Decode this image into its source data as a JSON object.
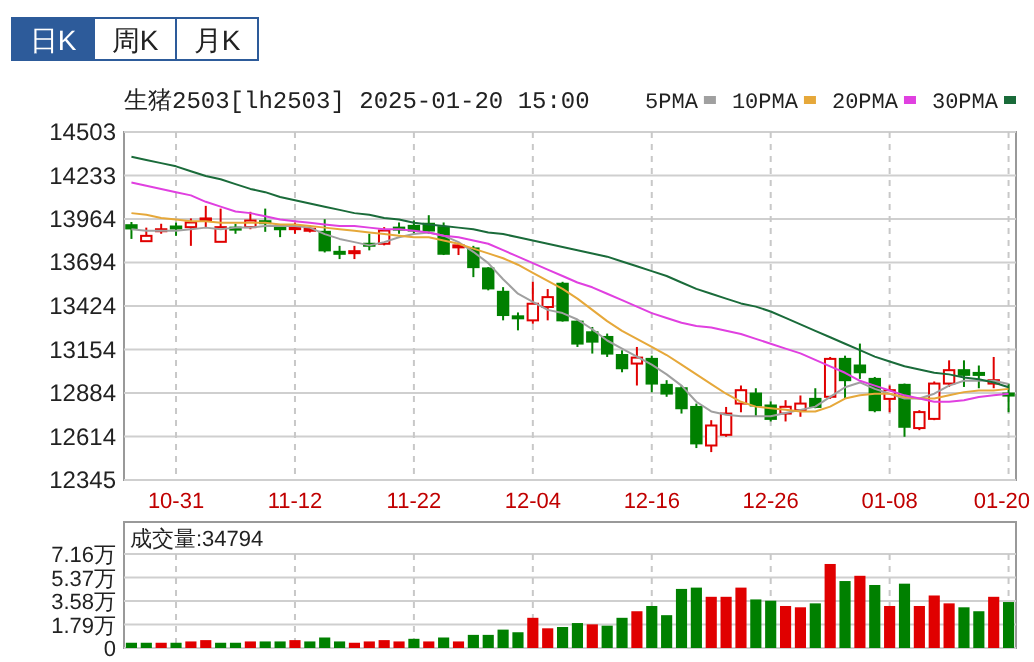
{
  "chart_data": [
    {
      "type": "candlestick",
      "title": "生猪2503[lh2503] 2025-01-20 15:00",
      "annotations": [
        "日K",
        "周K",
        "月K"
      ],
      "categories": [
        null,
        null,
        null,
        "10-31",
        null,
        null,
        null,
        null,
        null,
        null,
        null,
        "11-12",
        null,
        null,
        null,
        null,
        null,
        null,
        null,
        "11-22",
        null,
        null,
        null,
        null,
        null,
        null,
        null,
        "12-04",
        null,
        null,
        null,
        null,
        null,
        null,
        null,
        "12-16",
        null,
        null,
        null,
        null,
        null,
        null,
        null,
        "12-26",
        null,
        null,
        null,
        null,
        null,
        null,
        null,
        "01-08",
        null,
        null,
        null,
        null,
        null,
        null,
        null,
        "01-20"
      ],
      "ohlc": [
        [
          13925,
          13945,
          13840,
          13905
        ],
        [
          13826,
          13910,
          13826,
          13859
        ],
        [
          13897,
          13934,
          13872,
          13900
        ],
        [
          13917,
          13942,
          13859,
          13910
        ],
        [
          13913,
          13967,
          13797,
          13942
        ],
        [
          13963,
          14045,
          13913,
          13967
        ],
        [
          13822,
          14028,
          13822,
          13913
        ],
        [
          13910,
          13934,
          13872,
          13905
        ],
        [
          13913,
          14008,
          13900,
          13954
        ],
        [
          13950,
          14028,
          13884,
          13940
        ],
        [
          13913,
          13920,
          13851,
          13900
        ],
        [
          13910,
          13942,
          13872,
          13913
        ],
        [
          13897,
          13925,
          13880,
          13903
        ],
        [
          13884,
          13962,
          13756,
          13769
        ],
        [
          13760,
          13797,
          13715,
          13752
        ],
        [
          13760,
          13797,
          13715,
          13764
        ],
        [
          13810,
          13872,
          13769,
          13800
        ],
        [
          13810,
          13913,
          13800,
          13892
        ],
        [
          13910,
          13942,
          13872,
          13905
        ],
        [
          13921,
          13954,
          13872,
          13892
        ],
        [
          13934,
          13987,
          13872,
          13892
        ],
        [
          13913,
          13942,
          13740,
          13748
        ],
        [
          13796,
          13818,
          13740,
          13800
        ],
        [
          13781,
          13797,
          13603,
          13665
        ],
        [
          13657,
          13665,
          13521,
          13533
        ],
        [
          13512,
          13541,
          13335,
          13368
        ],
        [
          13360,
          13384,
          13273,
          13352
        ],
        [
          13335,
          13574,
          13314,
          13438
        ],
        [
          13418,
          13529,
          13335,
          13479
        ],
        [
          13562,
          13574,
          13327,
          13335
        ],
        [
          13327,
          13335,
          13170,
          13191
        ],
        [
          13261,
          13294,
          13129,
          13203
        ],
        [
          13232,
          13253,
          13108,
          13129
        ],
        [
          13120,
          13149,
          13013,
          13038
        ],
        [
          13067,
          13170,
          12931,
          13104
        ],
        [
          13096,
          13116,
          12889,
          12943
        ],
        [
          12935,
          12964,
          12861,
          12881
        ],
        [
          12914,
          12931,
          12757,
          12790
        ],
        [
          12798,
          12819,
          12543,
          12572
        ],
        [
          12559,
          12716,
          12518,
          12683
        ],
        [
          12625,
          12798,
          12613,
          12757
        ],
        [
          12819,
          12931,
          12765,
          12902
        ],
        [
          12881,
          12914,
          12737,
          12807
        ],
        [
          12807,
          12832,
          12708,
          12724
        ],
        [
          12757,
          12840,
          12708,
          12799
        ],
        [
          12778,
          12869,
          12737,
          12819
        ],
        [
          12848,
          12914,
          12790,
          12798
        ],
        [
          12861,
          13108,
          12848,
          13096
        ],
        [
          13096,
          13116,
          12848,
          12964
        ],
        [
          13055,
          13191,
          12972,
          13013
        ],
        [
          12972,
          12984,
          12765,
          12778
        ],
        [
          12848,
          12931,
          12765,
          12902
        ],
        [
          12935,
          12943,
          12613,
          12675
        ],
        [
          12667,
          12778,
          12654,
          12766
        ],
        [
          12724,
          12956,
          12716,
          12943
        ],
        [
          12943,
          13087,
          12922,
          13026
        ],
        [
          13026,
          13087,
          12922,
          12997
        ],
        [
          13009,
          13055,
          12914,
          13005
        ],
        [
          12943,
          13108,
          12914,
          12964
        ],
        [
          12881,
          12943,
          12765,
          12877
        ]
      ],
      "colors": [
        "#008000",
        "#e00000",
        "#e00000",
        "#008000",
        "#e00000",
        "#e00000",
        "#e00000",
        "#008000",
        "#e00000",
        "#008000",
        "#008000",
        "#e00000",
        "#e00000",
        "#008000",
        "#008000",
        "#e00000",
        "#008000",
        "#e00000",
        "#008000",
        "#008000",
        "#008000",
        "#008000",
        "#e00000",
        "#008000",
        "#008000",
        "#008000",
        "#008000",
        "#e00000",
        "#e00000",
        "#008000",
        "#008000",
        "#008000",
        "#008000",
        "#008000",
        "#e00000",
        "#008000",
        "#008000",
        "#008000",
        "#008000",
        "#e00000",
        "#e00000",
        "#e00000",
        "#008000",
        "#008000",
        "#e00000",
        "#e00000",
        "#008000",
        "#e00000",
        "#008000",
        "#008000",
        "#008000",
        "#e00000",
        "#008000",
        "#e00000",
        "#e00000",
        "#e00000",
        "#008000",
        "#008000",
        "#e00000",
        "#008000"
      ],
      "series": [
        {
          "name": "5PMA",
          "type": "line",
          "color": "#a0a0a0",
          "values": [
            13900,
            13890,
            13890,
            13890,
            13900,
            13910,
            13900,
            13910,
            13910,
            13920,
            13920,
            13920,
            13910,
            13870,
            13840,
            13820,
            13800,
            13820,
            13850,
            13870,
            13880,
            13860,
            13820,
            13760,
            13690,
            13590,
            13500,
            13450,
            13400,
            13380,
            13340,
            13280,
            13210,
            13160,
            13110,
            13060,
            13000,
            12930,
            12830,
            12770,
            12750,
            12740,
            12740,
            12740,
            12760,
            12780,
            12800,
            12860,
            12920,
            12950,
            12910,
            12880,
            12850,
            12850,
            12880,
            12930,
            12960,
            12960,
            12960,
            12940
          ]
        },
        {
          "name": "10PMA",
          "type": "line",
          "color": "#e6a83a",
          "values": [
            14000,
            13990,
            13970,
            13960,
            13950,
            13950,
            13940,
            13940,
            13940,
            13940,
            13930,
            13930,
            13920,
            13910,
            13900,
            13890,
            13880,
            13870,
            13860,
            13850,
            13850,
            13830,
            13810,
            13780,
            13750,
            13720,
            13680,
            13630,
            13580,
            13530,
            13470,
            13400,
            13330,
            13270,
            13220,
            13170,
            13120,
            13060,
            13000,
            12940,
            12880,
            12830,
            12800,
            12790,
            12780,
            12770,
            12770,
            12800,
            12850,
            12870,
            12880,
            12880,
            12860,
            12850,
            12850,
            12870,
            12890,
            12900,
            12900,
            12910
          ]
        },
        {
          "name": "20PMA",
          "type": "line",
          "color": "#e040e0",
          "values": [
            14190,
            14170,
            14150,
            14130,
            14110,
            14070,
            14040,
            14010,
            14000,
            13980,
            13960,
            13950,
            13940,
            13930,
            13920,
            13920,
            13910,
            13900,
            13900,
            13890,
            13880,
            13860,
            13850,
            13830,
            13810,
            13770,
            13730,
            13690,
            13650,
            13610,
            13570,
            13540,
            13500,
            13460,
            13420,
            13380,
            13350,
            13320,
            13300,
            13290,
            13270,
            13250,
            13220,
            13190,
            13160,
            13130,
            13090,
            13050,
            13010,
            12960,
            12930,
            12900,
            12870,
            12850,
            12830,
            12830,
            12840,
            12860,
            12870,
            12880
          ]
        },
        {
          "name": "30PMA",
          "type": "line",
          "color": "#1a6b3a",
          "values": [
            14350,
            14330,
            14310,
            14290,
            14260,
            14230,
            14210,
            14180,
            14150,
            14130,
            14100,
            14080,
            14060,
            14040,
            14020,
            14000,
            13990,
            13970,
            13960,
            13940,
            13930,
            13920,
            13910,
            13900,
            13880,
            13870,
            13850,
            13830,
            13810,
            13790,
            13770,
            13750,
            13730,
            13700,
            13670,
            13640,
            13610,
            13570,
            13530,
            13500,
            13470,
            13440,
            13420,
            13390,
            13350,
            13310,
            13270,
            13230,
            13190,
            13150,
            13110,
            13080,
            13050,
            13030,
            13010,
            13000,
            12980,
            12970,
            12950,
            12920
          ]
        }
      ],
      "ylim": [
        12345,
        14503
      ],
      "yticks": [
        12345,
        12614,
        12884,
        13154,
        13424,
        13694,
        13964,
        14233,
        14503
      ],
      "grid": true,
      "legend": "top right"
    },
    {
      "type": "bar",
      "annotations": [
        "成交量:34794"
      ],
      "categories": [
        null,
        null,
        null,
        null,
        null,
        null,
        null,
        null,
        null,
        null,
        null,
        null,
        null,
        null,
        null,
        null,
        null,
        null,
        null,
        null,
        null,
        null,
        null,
        null,
        null,
        null,
        null,
        null,
        null,
        null,
        null,
        null,
        null,
        null,
        null,
        null,
        null,
        null,
        null,
        null,
        null,
        null,
        null,
        null,
        null,
        null,
        null,
        null,
        null,
        null,
        null,
        null,
        null,
        null,
        null,
        null,
        null,
        null,
        null,
        null
      ],
      "values": [
        0.4,
        0.4,
        0.4,
        0.4,
        0.5,
        0.6,
        0.4,
        0.4,
        0.5,
        0.5,
        0.5,
        0.6,
        0.5,
        0.8,
        0.5,
        0.4,
        0.5,
        0.6,
        0.5,
        0.7,
        0.5,
        0.8,
        0.5,
        1.0,
        1.0,
        1.4,
        1.2,
        2.3,
        1.5,
        1.6,
        1.9,
        1.8,
        1.7,
        2.3,
        2.8,
        3.2,
        2.5,
        4.5,
        4.6,
        3.9,
        3.9,
        4.6,
        3.7,
        3.6,
        3.2,
        3.1,
        3.4,
        6.4,
        5.1,
        5.5,
        4.8,
        3.2,
        4.9,
        3.2,
        4.0,
        3.4,
        3.1,
        2.8,
        3.9,
        3.5
      ],
      "colors": [
        "#008000",
        "#008000",
        "#e00000",
        "#008000",
        "#e00000",
        "#e00000",
        "#008000",
        "#008000",
        "#e00000",
        "#008000",
        "#008000",
        "#e00000",
        "#008000",
        "#008000",
        "#008000",
        "#e00000",
        "#e00000",
        "#e00000",
        "#e00000",
        "#008000",
        "#e00000",
        "#008000",
        "#e00000",
        "#008000",
        "#008000",
        "#008000",
        "#008000",
        "#e00000",
        "#e00000",
        "#008000",
        "#008000",
        "#e00000",
        "#008000",
        "#008000",
        "#e00000",
        "#008000",
        "#008000",
        "#008000",
        "#008000",
        "#e00000",
        "#e00000",
        "#e00000",
        "#008000",
        "#008000",
        "#e00000",
        "#e00000",
        "#008000",
        "#e00000",
        "#008000",
        "#e00000",
        "#008000",
        "#e00000",
        "#008000",
        "#e00000",
        "#e00000",
        "#e00000",
        "#008000",
        "#008000",
        "#e00000",
        "#008000"
      ],
      "ylim": [
        0,
        7.16
      ],
      "yticks": [
        0,
        {
          "value": 1.79,
          "label": "1.79万"
        },
        {
          "value": 3.58,
          "label": "3.58万"
        },
        {
          "value": 5.37,
          "label": "5.37万"
        },
        {
          "value": 7.16,
          "label": "7.16万"
        }
      ],
      "grid": true,
      "tick_labels": "y"
    }
  ]
}
